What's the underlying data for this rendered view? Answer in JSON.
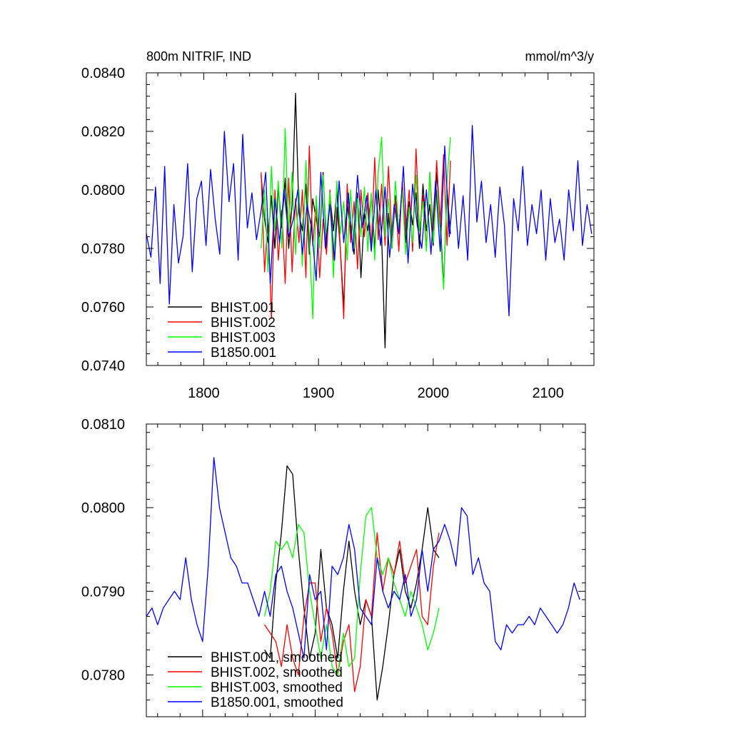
{
  "colors": {
    "BHIST.001": "#000000",
    "BHIST.002": "#ff0000",
    "BHIST.003": "#00ff00",
    "B1850.001": "#0000ff"
  },
  "chart_data": [
    {
      "type": "line",
      "title": "800m NITRIF, IND",
      "units": "mmol/m^3/y",
      "xlim": [
        1750,
        2140
      ],
      "ylim": [
        0.074,
        0.084
      ],
      "x_ticks": [
        1800,
        1900,
        2000,
        2100
      ],
      "x_tick_labels": [
        "1800",
        "1900",
        "2000",
        "2100"
      ],
      "y_ticks": [
        0.074,
        0.076,
        0.078,
        0.08,
        0.082,
        0.084
      ],
      "y_tick_labels": [
        "0.0740",
        "0.0760",
        "0.0780",
        "0.0800",
        "0.0820",
        "0.0840"
      ],
      "legend": "bottom-left",
      "series": [
        {
          "name": "BHIST.001",
          "color": "#000000",
          "x": [
            1850,
            1853,
            1856,
            1859,
            1862,
            1865,
            1868,
            1871,
            1874,
            1877,
            1880,
            1883,
            1886,
            1889,
            1892,
            1895,
            1898,
            1901,
            1904,
            1907,
            1910,
            1913,
            1916,
            1919,
            1922,
            1925,
            1928,
            1931,
            1934,
            1937,
            1940,
            1943,
            1946,
            1949,
            1952,
            1955,
            1958,
            1961,
            1964,
            1967,
            1970,
            1973,
            1976,
            1979,
            1982,
            1985,
            1988,
            1991,
            1994,
            1997,
            2000,
            2003,
            2006,
            2009,
            2012,
            2015
          ],
          "values": [
            0.0805,
            0.079,
            0.0782,
            0.0798,
            0.078,
            0.0801,
            0.0787,
            0.0804,
            0.078,
            0.0795,
            0.0833,
            0.0792,
            0.0786,
            0.0802,
            0.0778,
            0.0797,
            0.079,
            0.0784,
            0.0806,
            0.078,
            0.0798,
            0.0786,
            0.08,
            0.078,
            0.076,
            0.0795,
            0.0786,
            0.0778,
            0.0799,
            0.077,
            0.0792,
            0.0786,
            0.0798,
            0.078,
            0.08,
            0.0784,
            0.0746,
            0.0792,
            0.078,
            0.0798,
            0.0786,
            0.0801,
            0.0782,
            0.0796,
            0.0788,
            0.0799,
            0.078,
            0.0802,
            0.0786,
            0.0795,
            0.0781,
            0.0806,
            0.079,
            0.0767,
            0.08,
            0.0785
          ]
        },
        {
          "name": "BHIST.002",
          "color": "#ff0000",
          "x": [
            1850,
            1853,
            1856,
            1859,
            1862,
            1865,
            1868,
            1871,
            1874,
            1877,
            1880,
            1883,
            1886,
            1889,
            1892,
            1895,
            1898,
            1901,
            1904,
            1907,
            1910,
            1913,
            1916,
            1919,
            1922,
            1925,
            1928,
            1931,
            1934,
            1937,
            1940,
            1943,
            1946,
            1949,
            1952,
            1955,
            1958,
            1961,
            1964,
            1967,
            1970,
            1973,
            1976,
            1979,
            1982,
            1985,
            1988,
            1991,
            1994,
            1997,
            2000,
            2003,
            2006,
            2009,
            2012,
            2015
          ],
          "values": [
            0.0806,
            0.0772,
            0.079,
            0.0756,
            0.08,
            0.0776,
            0.0793,
            0.0768,
            0.0804,
            0.0772,
            0.0797,
            0.0782,
            0.08,
            0.077,
            0.0815,
            0.0781,
            0.0796,
            0.077,
            0.079,
            0.0778,
            0.08,
            0.0776,
            0.0794,
            0.078,
            0.0756,
            0.0802,
            0.0782,
            0.0796,
            0.0773,
            0.08,
            0.0784,
            0.0799,
            0.078,
            0.0811,
            0.0783,
            0.0802,
            0.0781,
            0.0808,
            0.0784,
            0.0797,
            0.0779,
            0.0803,
            0.0785,
            0.08,
            0.0779,
            0.0814,
            0.0786,
            0.0798,
            0.078,
            0.0806,
            0.0786,
            0.081,
            0.0788,
            0.0812,
            0.0781,
            0.081
          ]
        },
        {
          "name": "BHIST.003",
          "color": "#00ff00",
          "x": [
            1850,
            1853,
            1856,
            1859,
            1862,
            1865,
            1868,
            1871,
            1874,
            1877,
            1880,
            1883,
            1886,
            1889,
            1892,
            1895,
            1898,
            1901,
            1904,
            1907,
            1910,
            1913,
            1916,
            1919,
            1922,
            1925,
            1928,
            1931,
            1934,
            1937,
            1940,
            1943,
            1946,
            1949,
            1952,
            1955,
            1958,
            1961,
            1964,
            1967,
            1970,
            1973,
            1976,
            1979,
            1982,
            1985,
            1988,
            1991,
            1994,
            1997,
            2000,
            2003,
            2006,
            2009,
            2012,
            2015
          ],
          "values": [
            0.078,
            0.08,
            0.0772,
            0.0808,
            0.0786,
            0.0803,
            0.078,
            0.0821,
            0.0786,
            0.0806,
            0.0778,
            0.08,
            0.0774,
            0.081,
            0.0784,
            0.0756,
            0.0798,
            0.078,
            0.0805,
            0.0784,
            0.0799,
            0.077,
            0.0803,
            0.0785,
            0.0796,
            0.0776,
            0.08,
            0.078,
            0.0797,
            0.0784,
            0.0801,
            0.0779,
            0.0799,
            0.0776,
            0.0806,
            0.0818,
            0.0784,
            0.0797,
            0.078,
            0.0803,
            0.0786,
            0.08,
            0.0778,
            0.0794,
            0.0782,
            0.0805,
            0.0786,
            0.0796,
            0.0779,
            0.0806,
            0.0782,
            0.08,
            0.0786,
            0.0766,
            0.0803,
            0.0818
          ]
        },
        {
          "name": "B1850.001",
          "color": "#0000ff",
          "x": [
            1750,
            1754,
            1758,
            1762,
            1766,
            1770,
            1774,
            1778,
            1782,
            1786,
            1790,
            1794,
            1798,
            1802,
            1806,
            1810,
            1814,
            1818,
            1822,
            1826,
            1830,
            1834,
            1838,
            1842,
            1846,
            1850,
            1854,
            1858,
            1862,
            1866,
            1870,
            1874,
            1878,
            1882,
            1886,
            1890,
            1894,
            1898,
            1902,
            1906,
            1910,
            1914,
            1918,
            1922,
            1926,
            1930,
            1934,
            1938,
            1942,
            1946,
            1950,
            1954,
            1958,
            1962,
            1966,
            1970,
            1974,
            1978,
            1982,
            1986,
            1990,
            1994,
            1998,
            2002,
            2006,
            2010,
            2014,
            2018,
            2022,
            2026,
            2030,
            2034,
            2038,
            2042,
            2046,
            2050,
            2054,
            2058,
            2062,
            2066,
            2070,
            2074,
            2078,
            2082,
            2086,
            2090,
            2094,
            2098,
            2102,
            2106,
            2110,
            2114,
            2118,
            2122,
            2126,
            2130,
            2134,
            2138
          ],
          "values": [
            0.0785,
            0.0777,
            0.0801,
            0.0768,
            0.0808,
            0.0761,
            0.0795,
            0.0775,
            0.0784,
            0.0809,
            0.0772,
            0.0797,
            0.0803,
            0.0781,
            0.0807,
            0.079,
            0.0778,
            0.082,
            0.0796,
            0.0809,
            0.0776,
            0.0819,
            0.0787,
            0.0799,
            0.0783,
            0.0793,
            0.0806,
            0.0768,
            0.0797,
            0.0782,
            0.08,
            0.0784,
            0.079,
            0.08,
            0.0778,
            0.0795,
            0.0787,
            0.0769,
            0.0806,
            0.078,
            0.0795,
            0.0776,
            0.0803,
            0.0782,
            0.0799,
            0.0779,
            0.0805,
            0.0787,
            0.0798,
            0.0779,
            0.08,
            0.0781,
            0.0801,
            0.0777,
            0.0795,
            0.0785,
            0.0808,
            0.0775,
            0.0802,
            0.0788,
            0.078,
            0.08,
            0.0778,
            0.0803,
            0.0779,
            0.0815,
            0.0784,
            0.0802,
            0.078,
            0.0798,
            0.0776,
            0.0822,
            0.0789,
            0.0803,
            0.0782,
            0.0795,
            0.0777,
            0.0801,
            0.0788,
            0.0757,
            0.0797,
            0.0786,
            0.0808,
            0.0781,
            0.0795,
            0.0785,
            0.08,
            0.0776,
            0.0797,
            0.0782,
            0.079,
            0.0776,
            0.08,
            0.0786,
            0.081,
            0.0781,
            0.0795,
            0.0785
          ]
        }
      ]
    },
    {
      "type": "line",
      "title": "",
      "units": "",
      "xlim": [
        1750,
        2140
      ],
      "ylim": [
        0.0775,
        0.081
      ],
      "x_ticks": [
        1800,
        1900,
        2000,
        2100
      ],
      "x_tick_labels": [],
      "y_ticks": [
        0.078,
        0.079,
        0.08,
        0.081
      ],
      "y_tick_labels": [
        "0.0780",
        "0.0790",
        "0.0800",
        "0.0810"
      ],
      "legend": "bottom-left",
      "series": [
        {
          "name": "BHIST.001, smoothed",
          "color": "#000000",
          "x": [
            1855,
            1860,
            1865,
            1870,
            1875,
            1880,
            1885,
            1890,
            1895,
            1900,
            1905,
            1910,
            1915,
            1920,
            1925,
            1930,
            1935,
            1940,
            1945,
            1950,
            1955,
            1960,
            1965,
            1970,
            1975,
            1980,
            1985,
            1990,
            1995,
            2000,
            2005,
            2010
          ],
          "values": [
            0.0783,
            0.0782,
            0.0791,
            0.0797,
            0.0805,
            0.0804,
            0.0795,
            0.0788,
            0.0782,
            0.0785,
            0.0795,
            0.0788,
            0.0786,
            0.0782,
            0.079,
            0.0796,
            0.079,
            0.0786,
            0.0789,
            0.0787,
            0.0777,
            0.0781,
            0.0786,
            0.0792,
            0.0795,
            0.079,
            0.0788,
            0.0791,
            0.0795,
            0.08,
            0.0795,
            0.0794
          ]
        },
        {
          "name": "BHIST.002, smoothed",
          "color": "#ff0000",
          "x": [
            1855,
            1860,
            1865,
            1870,
            1875,
            1880,
            1885,
            1890,
            1895,
            1900,
            1905,
            1910,
            1915,
            1920,
            1925,
            1930,
            1935,
            1940,
            1945,
            1950,
            1955,
            1960,
            1965,
            1970,
            1975,
            1980,
            1985,
            1990,
            1995,
            2000,
            2005,
            2010
          ],
          "values": [
            0.0786,
            0.0785,
            0.0784,
            0.0781,
            0.0786,
            0.0782,
            0.078,
            0.0787,
            0.0791,
            0.0791,
            0.0784,
            0.0788,
            0.0785,
            0.078,
            0.0784,
            0.0786,
            0.0778,
            0.0781,
            0.0789,
            0.0787,
            0.0797,
            0.079,
            0.0794,
            0.0792,
            0.0796,
            0.0791,
            0.0793,
            0.0795,
            0.0787,
            0.0786,
            0.0793,
            0.0797
          ]
        },
        {
          "name": "BHIST.003, smoothed",
          "color": "#00ff00",
          "x": [
            1855,
            1860,
            1865,
            1870,
            1875,
            1880,
            1885,
            1890,
            1895,
            1900,
            1905,
            1910,
            1915,
            1920,
            1925,
            1930,
            1935,
            1940,
            1945,
            1950,
            1955,
            1960,
            1965,
            1970,
            1975,
            1980,
            1985,
            1990,
            1995,
            2000,
            2005,
            2010
          ],
          "values": [
            0.0787,
            0.079,
            0.0796,
            0.0795,
            0.0796,
            0.0794,
            0.0798,
            0.0797,
            0.079,
            0.0786,
            0.0782,
            0.0786,
            0.0781,
            0.078,
            0.0785,
            0.0781,
            0.0782,
            0.0792,
            0.0799,
            0.08,
            0.0794,
            0.0792,
            0.0794,
            0.0791,
            0.0789,
            0.0787,
            0.079,
            0.0788,
            0.0786,
            0.0783,
            0.0785,
            0.0788
          ]
        },
        {
          "name": "B1850.001, smoothed",
          "color": "#0000ff",
          "x": [
            1750,
            1755,
            1760,
            1765,
            1770,
            1775,
            1780,
            1785,
            1790,
            1795,
            1800,
            1805,
            1810,
            1815,
            1820,
            1825,
            1830,
            1835,
            1840,
            1845,
            1850,
            1855,
            1860,
            1865,
            1870,
            1875,
            1880,
            1885,
            1890,
            1895,
            1900,
            1905,
            1910,
            1915,
            1920,
            1925,
            1930,
            1935,
            1940,
            1945,
            1950,
            1955,
            1960,
            1965,
            1970,
            1975,
            1980,
            1985,
            1990,
            1995,
            2000,
            2005,
            2010,
            2015,
            2020,
            2025,
            2030,
            2035,
            2040,
            2045,
            2050,
            2055,
            2060,
            2065,
            2070,
            2075,
            2080,
            2085,
            2090,
            2095,
            2100,
            2105,
            2110,
            2115,
            2120,
            2125,
            2130,
            2135
          ],
          "values": [
            0.0787,
            0.0788,
            0.0786,
            0.0788,
            0.0789,
            0.079,
            0.0789,
            0.0794,
            0.0789,
            0.0786,
            0.0784,
            0.0793,
            0.0806,
            0.08,
            0.0797,
            0.0794,
            0.0793,
            0.0791,
            0.0791,
            0.0789,
            0.0787,
            0.079,
            0.0787,
            0.0792,
            0.0793,
            0.079,
            0.0788,
            0.0785,
            0.0782,
            0.0792,
            0.0789,
            0.079,
            0.0783,
            0.0793,
            0.0792,
            0.0794,
            0.0798,
            0.0795,
            0.0788,
            0.0787,
            0.0786,
            0.0794,
            0.079,
            0.0788,
            0.079,
            0.0789,
            0.0792,
            0.0787,
            0.0789,
            0.0795,
            0.079,
            0.0795,
            0.0796,
            0.0798,
            0.0796,
            0.0793,
            0.08,
            0.0799,
            0.0792,
            0.0794,
            0.0791,
            0.079,
            0.0784,
            0.0783,
            0.0786,
            0.0785,
            0.0786,
            0.0786,
            0.0787,
            0.0786,
            0.0788,
            0.0787,
            0.0786,
            0.0785,
            0.0786,
            0.0788,
            0.0791,
            0.0789
          ]
        }
      ]
    }
  ]
}
